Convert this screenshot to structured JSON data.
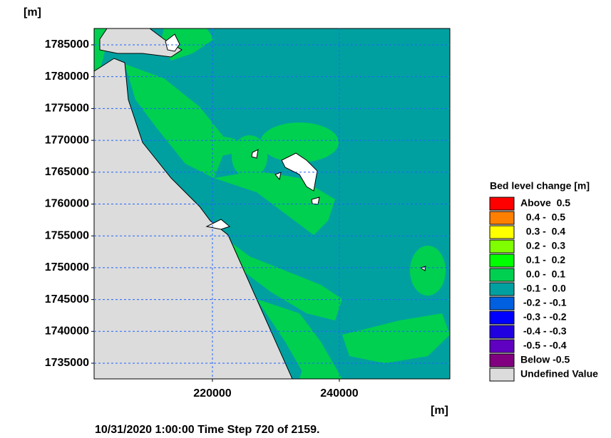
{
  "map": {
    "y_unit": "[m]",
    "x_unit": "[m]",
    "xlim": [
      201350,
      257420
    ],
    "ylim": [
      1732540,
      1787570
    ],
    "xticks": [
      220000,
      240000
    ],
    "yticks": [
      1735000,
      1740000,
      1745000,
      1750000,
      1755000,
      1760000,
      1765000,
      1770000,
      1775000,
      1780000,
      1785000
    ],
    "grid": true,
    "footer": "10/31/2020 1:00:00  Time Step 720 of 2159.",
    "legend": {
      "title": "Bed level change [m]",
      "entries": [
        {
          "label": "Above  0.5",
          "color": "#ff0000"
        },
        {
          "label": "  0.4 -  0.5",
          "color": "#ff8000"
        },
        {
          "label": "  0.3 -  0.4",
          "color": "#ffff00"
        },
        {
          "label": "  0.2 -  0.3",
          "color": "#80ff00"
        },
        {
          "label": "  0.1 -  0.2",
          "color": "#00ff00"
        },
        {
          "label": "  0.0 -  0.1",
          "color": "#00d050"
        },
        {
          "label": " -0.1 -  0.0",
          "color": "#00a0a0"
        },
        {
          "label": " -0.2 - -0.1",
          "color": "#0060e0"
        },
        {
          "label": " -0.3 - -0.2",
          "color": "#0000ff"
        },
        {
          "label": " -0.4 - -0.3",
          "color": "#2000e0"
        },
        {
          "label": " -0.5 - -0.4",
          "color": "#6000c0"
        },
        {
          "label": "Below -0.5",
          "color": "#800080"
        },
        {
          "label": "Undefined Value",
          "color": "#dcdcdc"
        }
      ]
    }
  }
}
